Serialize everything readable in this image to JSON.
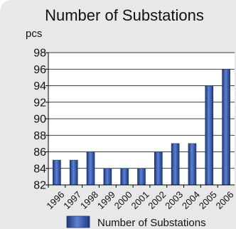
{
  "chart_data": {
    "type": "bar",
    "title": "Number of Substations",
    "unit": "pcs",
    "xlabel": "",
    "ylabel": "",
    "categories": [
      "1996",
      "1997",
      "1998",
      "1999",
      "2000",
      "2001",
      "2002",
      "2003",
      "2004",
      "2005",
      "2006"
    ],
    "series": [
      {
        "name": "Number of Substations",
        "color": "#2c4fa3",
        "values": [
          85,
          85,
          86,
          84,
          84,
          84,
          86,
          87,
          87,
          94,
          96
        ]
      }
    ],
    "ylim": [
      82,
      98
    ],
    "yticks": [
      "98",
      "96",
      "94",
      "92",
      "90",
      "88",
      "86",
      "84",
      "82"
    ],
    "grid": true,
    "legend": "bottom"
  }
}
